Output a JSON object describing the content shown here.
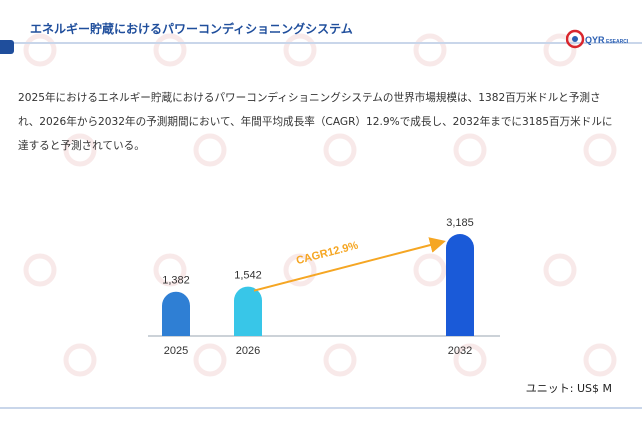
{
  "header": {
    "title": "エネルギー貯蔵におけるパワーコンディショニングシステム",
    "logo_text": "QYRESEARCH"
  },
  "description": "2025年におけるエネルギー貯蔵におけるパワーコンディショニングシステムの世界市場規模は、1382百万米ドルと予測され、2026年から2032年の予測期間において、年間平均成長率（CAGR）12.9%で成長し、2032年までに3185百万米ドルに達すると予測されている。",
  "chart_data": {
    "type": "bar",
    "categories": [
      "2025",
      "2026",
      "2032"
    ],
    "values": [
      1382,
      1542,
      3185
    ],
    "value_labels": [
      "1,382",
      "1,542",
      "3,185"
    ],
    "bar_colors": [
      "#2f7fd4",
      "#38c6e8",
      "#1a5ad8"
    ],
    "annotation": "CAGR12.9%",
    "annotation_color": "#f5a623",
    "unit": "ユニット: US$ M"
  },
  "colors": {
    "accent": "#1f4e9c",
    "rule": "#c9d6ea",
    "watermark": "#f2d7d7"
  }
}
